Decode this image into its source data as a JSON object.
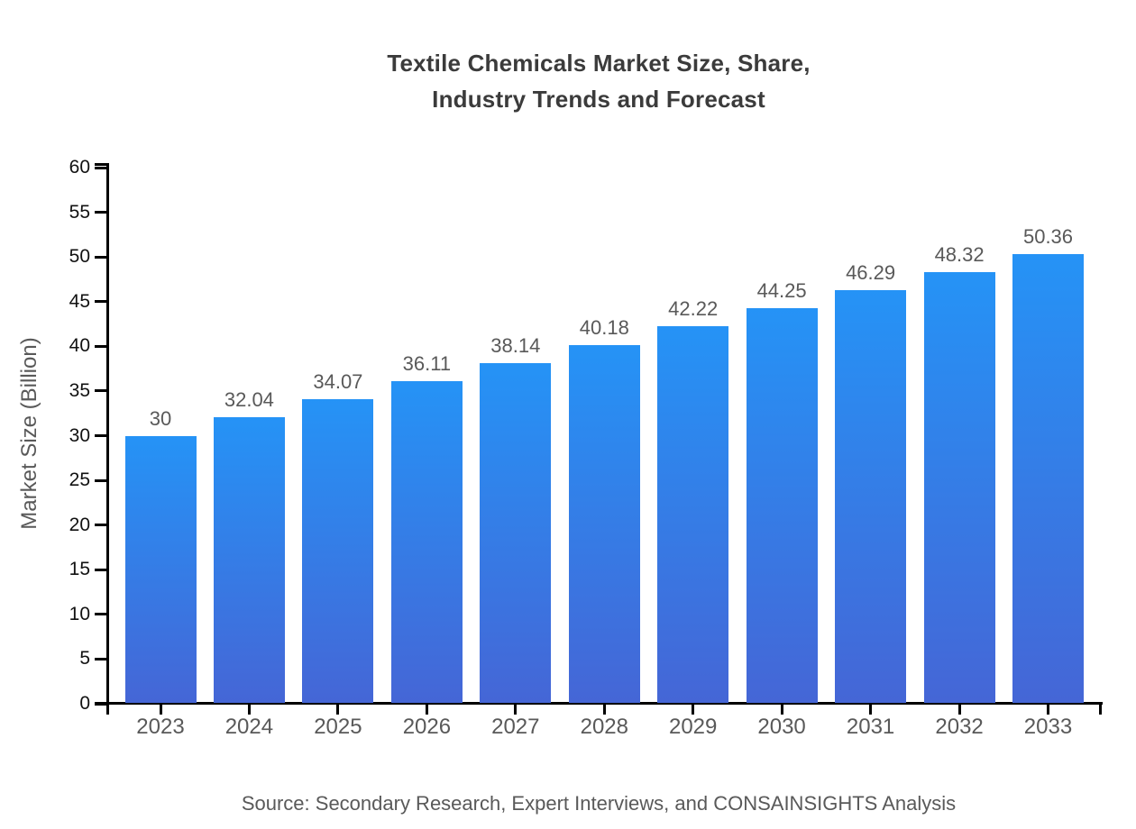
{
  "header": {
    "title_line1": "Textile Chemicals Market Size, Share,",
    "title_line2": "Industry Trends and Forecast"
  },
  "chart_data": {
    "type": "bar",
    "title": "Textile Chemicals Market Size, Share, Industry Trends and Forecast",
    "categories": [
      "2023",
      "2024",
      "2025",
      "2026",
      "2027",
      "2028",
      "2029",
      "2030",
      "2031",
      "2032",
      "2033"
    ],
    "values": [
      30,
      32.04,
      34.07,
      36.11,
      38.14,
      40.18,
      42.22,
      44.25,
      46.29,
      48.32,
      50.36
    ],
    "value_labels": [
      "30",
      "32.04",
      "34.07",
      "36.11",
      "38.14",
      "40.18",
      "42.22",
      "44.25",
      "46.29",
      "48.32",
      "50.36"
    ],
    "xlabel": "",
    "ylabel": "Market Size (Billion)",
    "ylim": [
      0,
      60
    ],
    "ytick_step": 5,
    "grid": false,
    "legend": false
  },
  "footer": {
    "source": "Source: Secondary Research, Expert Interviews, and CONSAINSIGHTS Analysis"
  },
  "colors": {
    "bar_gradient_top": "#2593f6",
    "bar_gradient_bottom": "#4566d6",
    "axis": "#000000",
    "tick_label": "#111111",
    "muted_text": "#595959",
    "title_text": "#3b3b3b",
    "background": "#ffffff"
  }
}
